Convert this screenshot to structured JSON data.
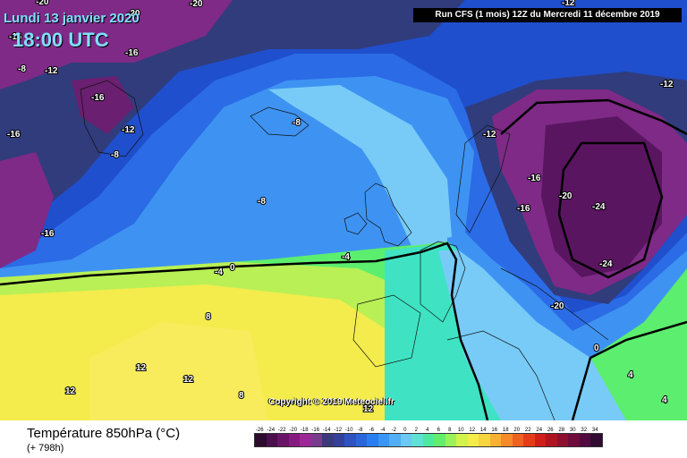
{
  "header": {
    "date": "Lundi 13 janvier 2020",
    "time": "18:00 UTC",
    "run": "Run CFS (1 mois) 12Z du Mercredi 11 décembre 2019"
  },
  "copyright": "Copyright © 2019 Meteociel.fr",
  "footer": {
    "title": "Température 850hPa (°C)",
    "lead": "(+ 798h)"
  },
  "map_labels": [
    "-20",
    "-20",
    "-12",
    "-16",
    "-8",
    "-12",
    "-12",
    "-16",
    "-16",
    "-12",
    "-8",
    "-20",
    "-8",
    "-8",
    "-12",
    "-16",
    "-16",
    "-20",
    "-24",
    "-16",
    "-24",
    "-20",
    "-16",
    "-4",
    "-4",
    "0",
    "8",
    "12",
    "12",
    "12",
    "8",
    "12",
    "0",
    "4",
    "4"
  ],
  "scale": {
    "ticks": [
      "-26",
      "-24",
      "-22",
      "-20",
      "-18",
      "-16",
      "-14",
      "-12",
      "-10",
      "-8",
      "-6",
      "-4",
      "-2",
      "0",
      "2",
      "4",
      "6",
      "8",
      "10",
      "12",
      "14",
      "16",
      "18",
      "20",
      "22",
      "24",
      "26",
      "28",
      "30",
      "32",
      "34"
    ],
    "colors": [
      "#2c0a2e",
      "#4a0f4c",
      "#6a1468",
      "#861a80",
      "#9c2898",
      "#7a3a8e",
      "#3a3a7a",
      "#34409a",
      "#2f52c0",
      "#2a66da",
      "#2a7ef0",
      "#3a96f6",
      "#52aff6",
      "#6ac8f4",
      "#5fe0d4",
      "#4ee8a0",
      "#62ee6a",
      "#9af25a",
      "#d2f24c",
      "#f4ec48",
      "#f8d43e",
      "#f8b032",
      "#f48a28",
      "#ee6220",
      "#e43c1a",
      "#d01e18",
      "#b01420",
      "#8e1030",
      "#6e0c3c",
      "#520a40",
      "#300a30"
    ]
  },
  "colors": {
    "cold_deep": "#5a1560",
    "cold_mid": "#7e2a86",
    "navy": "#303c7c",
    "blue": "#1f4fcc",
    "mid_blue": "#2b6be6",
    "light_blue": "#3e93f2",
    "cyan": "#78cbf7",
    "teal": "#3fe3c3",
    "green": "#5cee6e",
    "lime": "#b8f056",
    "yellow": "#f3ec4c"
  }
}
